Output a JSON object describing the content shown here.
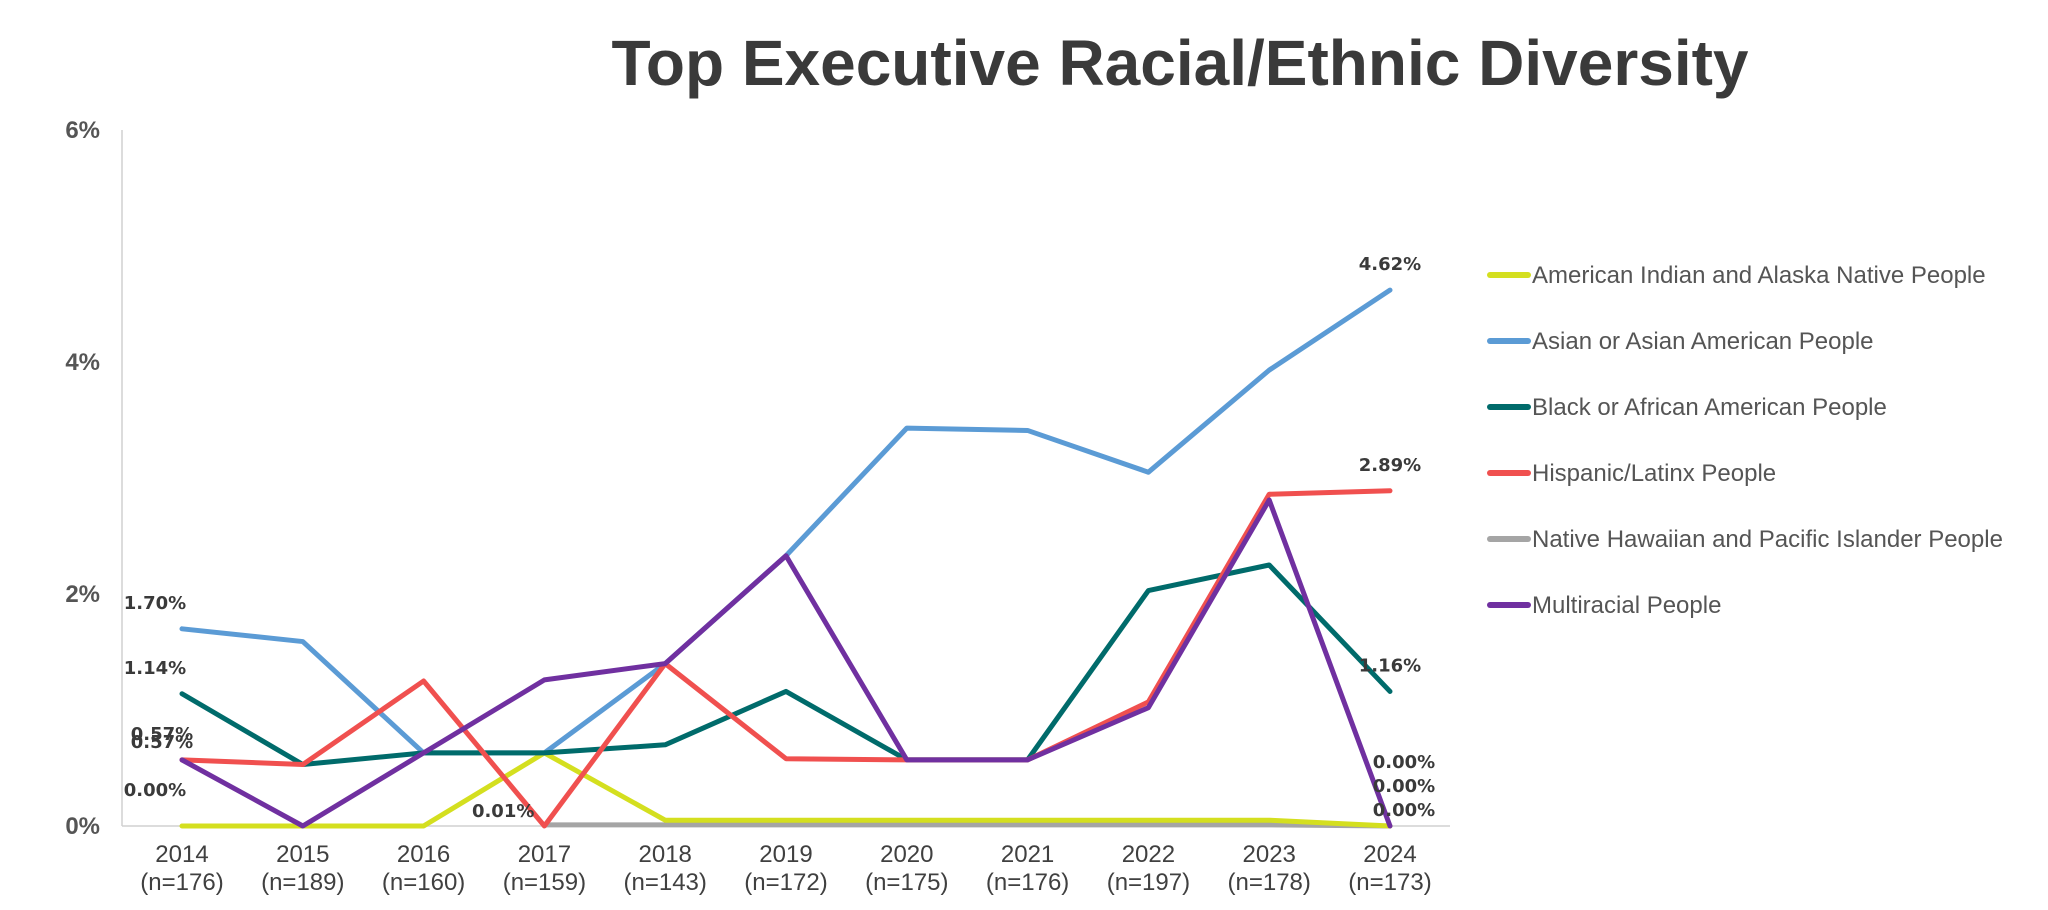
{
  "chart_data": {
    "type": "line",
    "title": "Top Executive Racial/Ethnic Diversity",
    "xlabel": "",
    "ylabel": "",
    "ylim": [
      0,
      6
    ],
    "yticks": [
      "0%",
      "2%",
      "4%",
      "6%"
    ],
    "categories": [
      "2014",
      "2015",
      "2016",
      "2017",
      "2018",
      "2019",
      "2020",
      "2021",
      "2022",
      "2023",
      "2024"
    ],
    "category_sublabels": [
      "(n=176)",
      "(n=189)",
      "(n=160)",
      "(n=159)",
      "(n=143)",
      "(n=172)",
      "(n=175)",
      "(n=176)",
      "(n=197)",
      "(n=178)",
      "(n=173)"
    ],
    "grid": false,
    "legend": "right",
    "series": [
      {
        "name": "American Indian and Alaska Native People",
        "color": "#d4df1f",
        "values": [
          0.0,
          0.0,
          0.0,
          0.63,
          0.05,
          0.05,
          0.05,
          0.05,
          0.05,
          0.05,
          0.0
        ]
      },
      {
        "name": "Asian or Asian American People",
        "color": "#5b9bd5",
        "values": [
          1.7,
          1.59,
          0.63,
          0.63,
          1.4,
          2.33,
          3.43,
          3.41,
          3.05,
          3.93,
          4.62
        ]
      },
      {
        "name": "Black or African American People",
        "color": "#006b6b",
        "values": [
          1.14,
          0.53,
          0.63,
          0.63,
          0.7,
          1.16,
          0.57,
          0.57,
          2.03,
          2.25,
          1.16
        ]
      },
      {
        "name": "Hispanic/Latinx People",
        "color": "#f0504f",
        "values": [
          0.57,
          0.53,
          1.25,
          0.0,
          1.4,
          0.58,
          0.57,
          0.57,
          1.07,
          2.86,
          2.89
        ]
      },
      {
        "name": "Native Hawaiian and Pacific Islander People",
        "color": "#a5a5a5",
        "values": [
          null,
          null,
          null,
          0.01,
          0.01,
          0.01,
          0.01,
          0.01,
          0.01,
          0.01,
          0.0
        ]
      },
      {
        "name": "Multiracial People",
        "color": "#7030a0",
        "values": [
          0.57,
          0.0,
          0.63,
          1.26,
          1.4,
          2.33,
          0.57,
          0.57,
          1.02,
          2.81,
          0.0
        ]
      }
    ],
    "data_labels": [
      {
        "text": "1.70%",
        "series": 1,
        "index": 0
      },
      {
        "text": "1.14%",
        "series": 2,
        "index": 0
      },
      {
        "text": "0.57%",
        "series": 3,
        "index": 0
      },
      {
        "text": "0.57%",
        "series": 5,
        "index": 0
      },
      {
        "text": "0.00%",
        "series": 0,
        "index": 0
      },
      {
        "text": "0.01%",
        "series": 4,
        "index": 3
      },
      {
        "text": "4.62%",
        "series": 1,
        "index": 10
      },
      {
        "text": "2.89%",
        "series": 3,
        "index": 10
      },
      {
        "text": "1.16%",
        "series": 2,
        "index": 10
      },
      {
        "text": "0.00%",
        "series": 5,
        "index": 10
      },
      {
        "text": "0.00%",
        "series": 0,
        "index": 10
      },
      {
        "text": "0.00%",
        "series": 4,
        "index": 10
      }
    ]
  }
}
